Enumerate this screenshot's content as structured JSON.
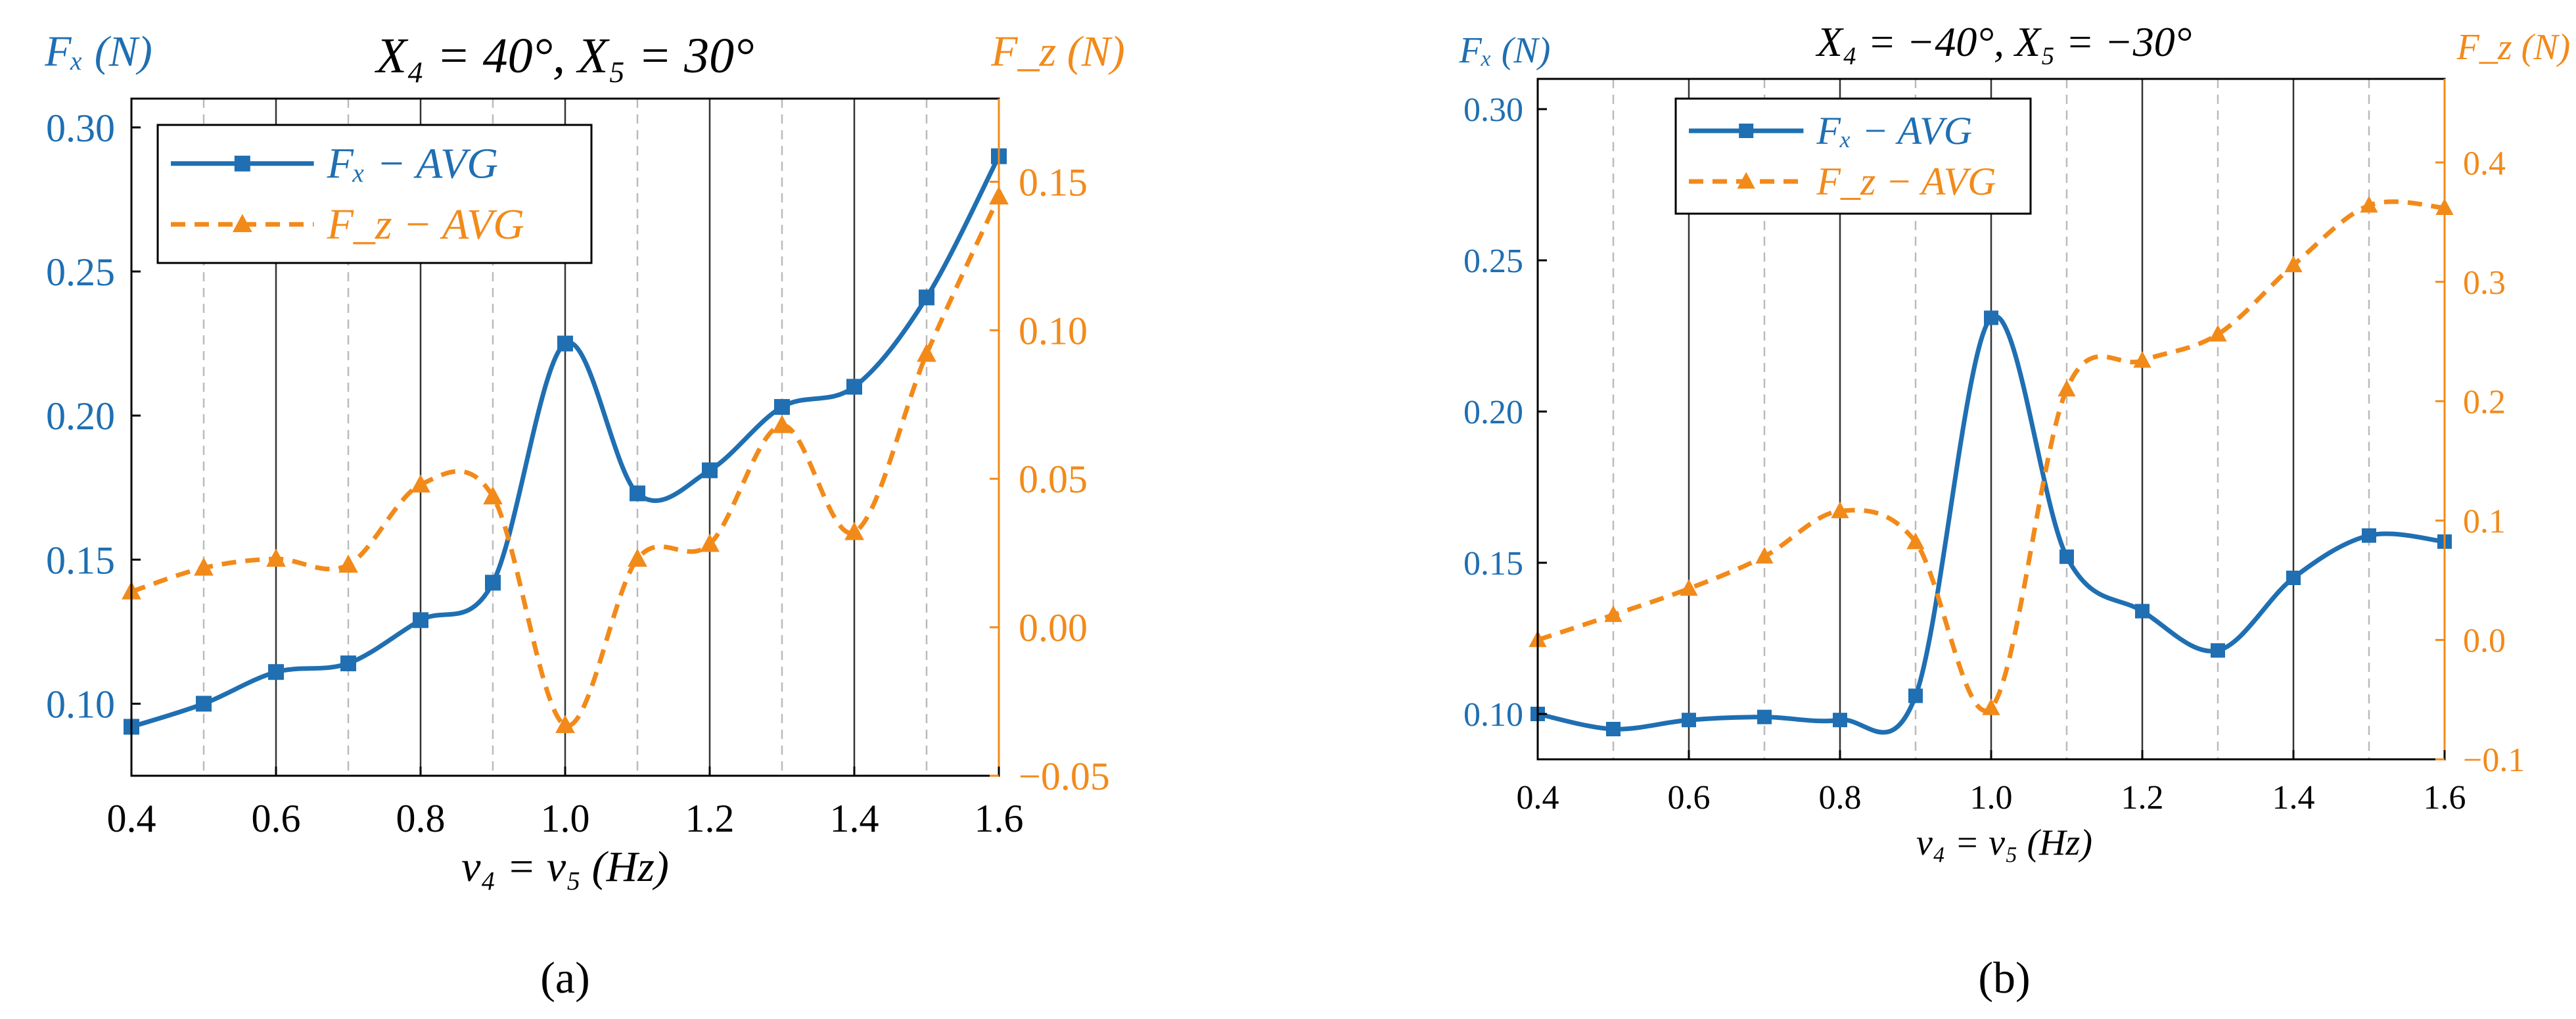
{
  "colors": {
    "fx": "#1f6fb2",
    "fz": "#f28a1a",
    "axis": "#000000",
    "grid_major": "#333333",
    "grid_minor": "#bbbbbb"
  },
  "chart_data": [
    {
      "type": "line",
      "panel_label": "(a)",
      "title_text": "X₄ = 40°, X₅ = 30°",
      "xlabel": "v₄ = v₅ (Hz)",
      "ylabel_left": "Fₓ (N)",
      "ylabel_right": "F_z (N)",
      "xlim": [
        0.4,
        1.6
      ],
      "xticks": [
        0.4,
        0.6,
        0.8,
        1.0,
        1.2,
        1.4,
        1.6
      ],
      "xtick_labels": [
        "0.4",
        "0.6",
        "0.8",
        "1.0",
        "1.2",
        "1.4",
        "1.6"
      ],
      "ylim_left": [
        0.075,
        0.31
      ],
      "yticks_left": [
        0.1,
        0.15,
        0.2,
        0.25,
        0.3
      ],
      "ytick_labels_left": [
        "0.10",
        "0.15",
        "0.20",
        "0.25",
        "0.30"
      ],
      "ylim_right": [
        -0.05,
        0.178
      ],
      "yticks_right": [
        -0.05,
        0.0,
        0.05,
        0.1,
        0.15
      ],
      "ytick_labels_right": [
        "−0.05",
        "0.00",
        "0.05",
        "0.10",
        "0.15"
      ],
      "x": [
        0.4,
        0.5,
        0.6,
        0.7,
        0.8,
        0.9,
        1.0,
        1.1,
        1.2,
        1.3,
        1.4,
        1.5,
        1.6
      ],
      "series": [
        {
          "name": "Fₓ − AVG",
          "axis": "left",
          "marker": "square",
          "dash": "solid",
          "values": [
            0.092,
            0.1,
            0.111,
            0.114,
            0.129,
            0.142,
            0.225,
            0.173,
            0.181,
            0.203,
            0.21,
            0.241,
            0.29
          ]
        },
        {
          "name": "F_z − AVG",
          "axis": "right",
          "marker": "triangle",
          "dash": "dashed",
          "values": [
            0.012,
            0.02,
            0.023,
            0.021,
            0.048,
            0.044,
            -0.033,
            0.023,
            0.028,
            0.068,
            0.032,
            0.092,
            0.145
          ]
        }
      ],
      "legend_labels": [
        "Fₓ − AVG",
        "F_z − AVG"
      ],
      "legend_position": "top-left"
    },
    {
      "type": "line",
      "panel_label": "(b)",
      "title_text": "X₄ = −40°, X₅ = −30°",
      "xlabel": "v₄ = v₅ (Hz)",
      "ylabel_left": "Fₓ (N)",
      "ylabel_right": "F_z (N)",
      "xlim": [
        0.4,
        1.6
      ],
      "xticks": [
        0.4,
        0.6,
        0.8,
        1.0,
        1.2,
        1.4,
        1.6
      ],
      "xtick_labels": [
        "0.4",
        "0.6",
        "0.8",
        "1.0",
        "1.2",
        "1.4",
        "1.6"
      ],
      "ylim_left": [
        0.085,
        0.31
      ],
      "yticks_left": [
        0.1,
        0.15,
        0.2,
        0.25,
        0.3
      ],
      "ytick_labels_left": [
        "0.10",
        "0.15",
        "0.20",
        "0.25",
        "0.30"
      ],
      "ylim_right": [
        -0.1,
        0.47
      ],
      "yticks_right": [
        -0.1,
        0.0,
        0.1,
        0.2,
        0.3,
        0.4
      ],
      "ytick_labels_right": [
        "−0.1",
        "0.0",
        "0.1",
        "0.2",
        "0.3",
        "0.4"
      ],
      "x": [
        0.4,
        0.5,
        0.6,
        0.7,
        0.8,
        0.9,
        1.0,
        1.1,
        1.2,
        1.3,
        1.4,
        1.5,
        1.6
      ],
      "series": [
        {
          "name": "Fₓ − AVG",
          "axis": "left",
          "marker": "square",
          "dash": "solid",
          "values": [
            0.1,
            0.095,
            0.098,
            0.099,
            0.098,
            0.106,
            0.231,
            0.152,
            0.134,
            0.121,
            0.145,
            0.159,
            0.157
          ]
        },
        {
          "name": "F_z − AVG",
          "axis": "right",
          "marker": "triangle",
          "dash": "dashed",
          "values": [
            0.0,
            0.021,
            0.043,
            0.07,
            0.108,
            0.082,
            -0.057,
            0.21,
            0.234,
            0.256,
            0.314,
            0.364,
            0.362
          ]
        }
      ],
      "legend_labels": [
        "Fₓ − AVG",
        "F_z − AVG"
      ],
      "legend_position": "top-left"
    }
  ]
}
